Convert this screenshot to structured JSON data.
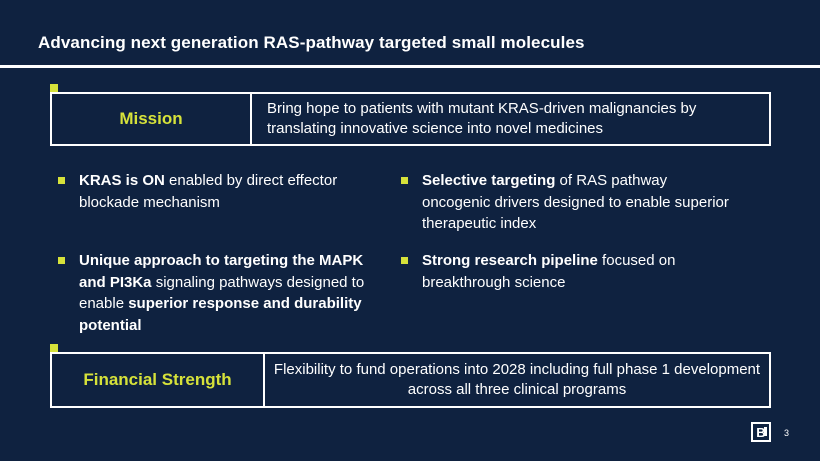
{
  "slide": {
    "title": "Advancing next generation RAS-pathway targeted small molecules",
    "page_number": "3"
  },
  "mission": {
    "label": "Mission",
    "text": "Bring hope to patients with mutant KRAS-driven malignancies by translating innovative science into novel medicines"
  },
  "bullets": [
    {
      "parts": [
        {
          "bold": true,
          "text": "KRAS is ON"
        },
        {
          "bold": false,
          "text": " enabled by direct effector blockade mechanism"
        }
      ]
    },
    {
      "parts": [
        {
          "bold": true,
          "text": "Selective targeting"
        },
        {
          "bold": false,
          "text": " of RAS pathway oncogenic drivers designed to enable superior therapeutic index"
        }
      ]
    },
    {
      "parts": [
        {
          "bold": true,
          "text": "Unique approach to targeting the MAPK and PI3Ka"
        },
        {
          "bold": false,
          "text": " signaling pathways designed to enable "
        },
        {
          "bold": true,
          "text": "superior response and durability potential"
        }
      ]
    },
    {
      "parts": [
        {
          "bold": true,
          "text": "Strong research pipeline"
        },
        {
          "bold": false,
          "text": " focused on breakthrough science"
        }
      ]
    }
  ],
  "financial": {
    "label": "Financial Strength",
    "text": "Flexibility to fund operations into 2028 including full phase 1 development across all three clinical programs"
  },
  "logo": {
    "letter": "B"
  },
  "colors": {
    "background": "#0f2240",
    "accent": "#d6e23a",
    "text": "#ffffff"
  },
  "icons": [
    "bullet-square-icon",
    "company-logo-icon"
  ]
}
